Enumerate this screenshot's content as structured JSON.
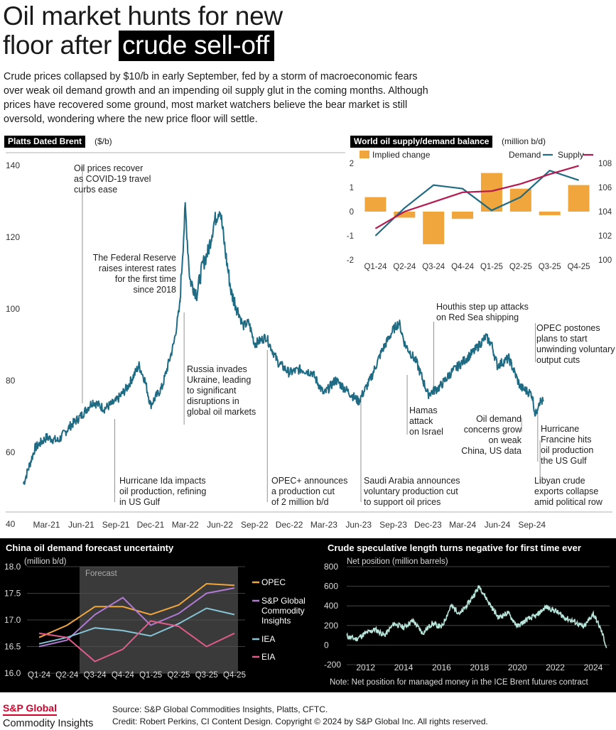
{
  "header": {
    "title_line1": "Oil market hunts for new",
    "title_line2_plain": "floor after ",
    "title_line2_highlight": "crude sell-off",
    "subtitle": "Crude prices collapsed by $10/b in early September, fed by a storm of macroeconomic fears over weak oil demand growth and an impending oil supply glut in the coming months. Although prices have recovered some ground, most market watchers believe the bear market is still oversold, wondering where the new price floor will settle."
  },
  "colors": {
    "teal": "#1f6b84",
    "crimson": "#b5194f",
    "orange": "#f0a63c",
    "black": "#000000",
    "mint": "#b9e6da",
    "red_brand": "#d6002a"
  },
  "footer": {
    "source": "Source: S&P Global Commodities Insights, Platts, CFTC.",
    "credit": "Credit: Robert Perkins, CI Content Design.  Copyright © 2024 by S&P Global Inc.  All rights reserved.",
    "logo_line1": "S&P Global",
    "logo_line2": "Commodity Insights"
  },
  "chart_data": [
    {
      "type": "line",
      "title": "Platts Dated Brent",
      "unit": "($/b)",
      "ylim": [
        40,
        140
      ],
      "y_ticks": [
        40,
        60,
        80,
        100,
        120,
        140
      ],
      "x_tick_labels": [
        "Mar-21",
        "Jun-21",
        "Sep-21",
        "Dec-21",
        "Mar-22",
        "Jun-22",
        "Sep-22",
        "Dec-22",
        "Mar-23",
        "Jun-23",
        "Sep-23",
        "Dec-23",
        "Mar-24",
        "Jun-24",
        "Sep-24"
      ],
      "x_months": [
        2,
        5,
        8,
        11,
        14,
        17,
        20,
        23,
        26,
        29,
        32,
        35,
        38,
        41,
        44
      ],
      "series": [
        {
          "name": "Platts Dated Brent",
          "points": [
            [
              0,
              51
            ],
            [
              0.5,
              56
            ],
            [
              1,
              61
            ],
            [
              2,
              64
            ],
            [
              3,
              63
            ],
            [
              4,
              67
            ],
            [
              5,
              70
            ],
            [
              6,
              74
            ],
            [
              7,
              72
            ],
            [
              8,
              74
            ],
            [
              9,
              78
            ],
            [
              10,
              84
            ],
            [
              10.5,
              80
            ],
            [
              11,
              73
            ],
            [
              12,
              78
            ],
            [
              13,
              90
            ],
            [
              13.5,
              100
            ],
            [
              14,
              128
            ],
            [
              14.4,
              108
            ],
            [
              15,
              104
            ],
            [
              15.5,
              112
            ],
            [
              16,
              116
            ],
            [
              16.5,
              124
            ],
            [
              17,
              128
            ],
            [
              17.5,
              115
            ],
            [
              18,
              104
            ],
            [
              18.5,
              100
            ],
            [
              19,
              95
            ],
            [
              19.5,
              96
            ],
            [
              20,
              90
            ],
            [
              21,
              92
            ],
            [
              22,
              85
            ],
            [
              23,
              82
            ],
            [
              24,
              83
            ],
            [
              25,
              82
            ],
            [
              26,
              76
            ],
            [
              27,
              80
            ],
            [
              28,
              77
            ],
            [
              29,
              74
            ],
            [
              30,
              80
            ],
            [
              31,
              88
            ],
            [
              32,
              94
            ],
            [
              32.5,
              96
            ],
            [
              33,
              90
            ],
            [
              34,
              85
            ],
            [
              35,
              76
            ],
            [
              36,
              78
            ],
            [
              37,
              82
            ],
            [
              38,
              85
            ],
            [
              39,
              88
            ],
            [
              40,
              92
            ],
            [
              40.5,
              90
            ],
            [
              41,
              84
            ],
            [
              42,
              86
            ],
            [
              43,
              78
            ],
            [
              44,
              76
            ],
            [
              44.3,
              70
            ],
            [
              44.6,
              74
            ],
            [
              45,
              74
            ]
          ]
        }
      ],
      "annotations": [
        {
          "text": [
            "Oil prices recover",
            "as COVID-19 travel",
            "curbs ease"
          ],
          "month": 5.1
        },
        {
          "text": [
            "The Federal Reserve",
            "raises interest rates",
            "for the first time",
            "since 2018"
          ],
          "month": 13.6
        },
        {
          "text": [
            "Russia invades",
            "Ukraine, leading",
            "to significant",
            "disruptions in",
            "global oil markets"
          ],
          "month": 13.9
        },
        {
          "text": [
            "Hurricane Ida impacts",
            "oil production, refining",
            "in US Gulf"
          ],
          "month": 7.9
        },
        {
          "text": [
            "OPEC+ announces",
            "a production cut",
            "of 2 million b/d"
          ],
          "month": 21.1
        },
        {
          "text": [
            "Saudi Arabia announces",
            "voluntary production cut",
            "to support oil prices"
          ],
          "month": 29.2
        },
        {
          "text": [
            "Hamas",
            "attack",
            "on Israel"
          ],
          "month": 33.2
        },
        {
          "text": [
            "Houthis step up attacks",
            "on Red Sea shipping"
          ],
          "month": 35.5
        },
        {
          "text": [
            "Oil demand",
            "concerns grow",
            "on weak",
            "China, US data"
          ],
          "month": 43.1
        },
        {
          "text": [
            "OPEC postones",
            "plans to start",
            "unwinding voluntary",
            "output cuts"
          ],
          "month": 44.3
        },
        {
          "text": [
            "Hurricane",
            "Francine hits",
            "oil production",
            "the US Gulf"
          ],
          "month": 44.5
        },
        {
          "text": [
            "Libyan crude",
            "exports collapse",
            "amid political row"
          ],
          "month": 44.7
        }
      ]
    },
    {
      "type": "bar+line",
      "title": "World oil supply/demand balance",
      "unit": "(million b/d)",
      "categories": [
        "Q1-24",
        "Q2-24",
        "Q3-24",
        "Q4-24",
        "Q1-25",
        "Q2-25",
        "Q3-25",
        "Q4-25"
      ],
      "left_axis": {
        "ylim": [
          -2,
          2
        ],
        "ticks": [
          -2,
          -1,
          0,
          1,
          2
        ]
      },
      "right_axis": {
        "ylim": [
          100,
          108
        ],
        "ticks": [
          100,
          102,
          104,
          106,
          108
        ]
      },
      "series": [
        {
          "name": "Implied change",
          "type": "bar",
          "axis": "left",
          "values": [
            0.6,
            -0.25,
            -1.35,
            -0.3,
            1.6,
            0.95,
            -0.15,
            1.1
          ]
        },
        {
          "name": "Demand",
          "type": "line",
          "axis": "right",
          "values": [
            102.0,
            104.3,
            106.2,
            105.9,
            104.1,
            105.2,
            107.4,
            106.6
          ]
        },
        {
          "name": "Supply",
          "type": "line",
          "axis": "right",
          "values": [
            102.6,
            104.0,
            104.8,
            105.6,
            105.7,
            106.3,
            107.1,
            107.8
          ]
        }
      ],
      "legend": [
        "Implied change",
        "Demand",
        "Supply"
      ]
    },
    {
      "type": "line",
      "title": "China oil demand forecast uncertainty",
      "unit": "(million b/d)",
      "shaded_label": "Forecast",
      "categories": [
        "Q1-24",
        "Q2-24",
        "Q3-24",
        "Q4-24",
        "Q1-25",
        "Q2-25",
        "Q3-25",
        "Q4-25"
      ],
      "ylim": [
        16.0,
        18.0
      ],
      "y_ticks": [
        "16.0",
        "16.5",
        "17.0",
        "17.5",
        "18.0"
      ],
      "series": [
        {
          "name": "OPEC",
          "values": [
            16.67,
            16.9,
            17.25,
            17.25,
            17.1,
            17.28,
            17.68,
            17.65
          ]
        },
        {
          "name": "S&P Global Commodity Insights",
          "label_lines": [
            "S&P Global",
            "Commodity",
            "Insights"
          ],
          "values": [
            16.5,
            16.62,
            17.1,
            17.42,
            16.9,
            17.12,
            17.5,
            17.6
          ]
        },
        {
          "name": "IEA",
          "values": [
            16.55,
            16.67,
            16.85,
            16.8,
            16.7,
            16.93,
            17.22,
            17.1
          ]
        },
        {
          "name": "EIA",
          "values": [
            16.75,
            16.67,
            16.22,
            16.45,
            16.98,
            16.88,
            16.5,
            16.75
          ]
        }
      ]
    },
    {
      "type": "line",
      "title": "Crude speculative length turns negative for first time ever",
      "unit": "Net position (million barrels)",
      "note": "Note: Net position for managed money in the ICE Brent futures contract",
      "ylim": [
        -200,
        800
      ],
      "y_ticks": [
        -200,
        0,
        200,
        400,
        600,
        800
      ],
      "x_tick_labels": [
        "2012",
        "2014",
        "2016",
        "2018",
        "2020",
        "2022",
        "2024"
      ],
      "x_years": [
        2012,
        2014,
        2016,
        2018,
        2020,
        2022,
        2024
      ],
      "series": [
        {
          "name": "Net position",
          "points": [
            [
              2011.0,
              90
            ],
            [
              2011.5,
              60
            ],
            [
              2012.0,
              120
            ],
            [
              2012.5,
              160
            ],
            [
              2013.0,
              100
            ],
            [
              2013.5,
              220
            ],
            [
              2014.0,
              180
            ],
            [
              2014.5,
              250
            ],
            [
              2015.0,
              120
            ],
            [
              2015.5,
              220
            ],
            [
              2016.0,
              180
            ],
            [
              2016.5,
              400
            ],
            [
              2017.0,
              320
            ],
            [
              2017.5,
              450
            ],
            [
              2018.0,
              600
            ],
            [
              2018.5,
              430
            ],
            [
              2019.0,
              280
            ],
            [
              2019.5,
              330
            ],
            [
              2020.0,
              190
            ],
            [
              2020.5,
              260
            ],
            [
              2021.0,
              300
            ],
            [
              2021.5,
              390
            ],
            [
              2022.0,
              350
            ],
            [
              2022.5,
              280
            ],
            [
              2023.0,
              240
            ],
            [
              2023.5,
              180
            ],
            [
              2024.0,
              320
            ],
            [
              2024.3,
              200
            ],
            [
              2024.5,
              110
            ],
            [
              2024.7,
              -30
            ]
          ]
        }
      ]
    }
  ]
}
